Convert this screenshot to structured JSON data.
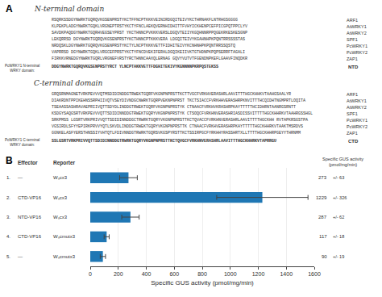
{
  "chart_data": {
    "type": "bar",
    "orientation": "horizontal",
    "panel_labels": [
      "A",
      "B"
    ],
    "alignment": [
      {
        "title": "N-terminal domain",
        "rows": [
          {
            "label": "ARF1",
            "seq": "RSQRKSSDGYNWRKTGQRQVKGSENPRSTYKCTFFNCPTKKKVEINIRDGQITEIVYKCTHRNAKFLNTRHGSGGGG"
          },
          {
            "label": "AtWRKY1",
            "seq": "KLPEKPLADGYNWRKTGQKLVRGNEPTRSTYKCTYFNCLAEKQVERNHIDHITTFVHYICKHENPCEFPICGPQTPPCLYV"
          },
          {
            "label": "AtWRKY2",
            "seq": "SAVDKPAQDGYNWRKTGQRHVEGSEYPRST YKCTHNNCPVKKKVERSLDGQVTEIIYKGQHNNRPPQGEKRKESKESGNP"
          },
          {
            "label": "SPF1",
            "seq": "LEKQRRSD DGYNWRKTGQRQVKGSENPRSTYKCTHNNCPTKKKVERA LDGQITEIVYKGAHNHPKPQNTRRSSSSTAS"
          },
          {
            "label": "PcWRKY1",
            "seq": "NRDQSKLDGYNWRKTGQRQVKGSENPRSTYKCTYLNCPTKKKVETTFIDHITEIVYKCNHNHPKPQNTRRSSQSTQ"
          },
          {
            "label": "PcWRKY2",
            "seq": "VAPRRSD DGYNWRKTGQKLVRGCEFPRSTYKCTYFNCDVEKIFERALDGQIKEIIVKTGTHDNPKPQPSERRFTAGALI"
          },
          {
            "label": "ZAP1",
            "seq": "FIRKKVRNEDGYNWRKTGQRLVRGNEFVRSTYRCTHNNCAAXQLERNAG GQVYVUTVTFGENDNPKEFLGAAVFINQDKR"
          }
        ],
        "domain_label": "PcWRKY1 N-terminal\nWRKY domain:",
        "domain_seq": "DDGYNWRKTGQRQVKGSENPRSTYRCT YLNCPTAKKVETTFDGHITEKIVYKGNNNNPKRPQSTEKSS",
        "domain_tag": "NTD"
      },
      {
        "title": "C-terminal domain",
        "rows": [
          {
            "label": "ARF1",
            "seq": "GRQSRNMAGNETVRKPEVVVQTMSDIDINDDGTRWEKTGQRFVKGNPNPRSTTKCTTVGCFVRKHVERASHRLAAVITTTHGCKHHKVTAAHGSAALYR"
          },
          {
            "label": "AtWRKY1",
            "seq": "DIAKRDNTPPIKEHNSSRPHIIVQTVSEYDIVNDGCNWRKTGQRPVEKNPNPRST TKCTSIACCFVRKHHVERASHRPKNVITTTHCQIDHTNGMPRTLOQITA"
          },
          {
            "label": "AtWRKY2",
            "seq": "TSEAASSASHRAVAEPRIIVQTTSDYDLINDDGTRWEKTGQRFVKGNPNPRSTYK CTNAACFVRKHVKRASHRPKAYTTTTTHCIDHRNTAANRGSRNTT"
          },
          {
            "label": "SPF1",
            "seq": "KSDGYSAQGSRTVRKPEVVVQTTSDIDINNDDGTRWEKTGQRYVKGNPNPRSTYK CTSOQCFVRKHNVERASHRIASDISSVITTTTHGCKHHRKVTAAHRGSSHGL"
          },
          {
            "label": "PcWRKY1",
            "seq": "SRKPMSS LGSRTVRKPRIVVQTTSDIDINNDDGCTRWRKTGQRYVKGNPNPRSTTKCTQVACCFVRKHNVERASHRLAAVITTTTHGCKHH RVTAPKRSGSTPA"
          },
          {
            "label": "PcWRKY2",
            "seq": "VGSIRDLSFYYEPIRKPRVVYQTLSKVDLINDDGTRWEKTGQRYVKGNPNPRSTTK CTNAACFVRKHVERASHRPKAYTTTTTHGCKHHRKVTAAKTMSRDVS"
          },
          {
            "label": "ZAP1",
            "seq": "GGNKELASFYERSTHNSSIYVHTQTLFDIVNNDGTRWRKTGQRSVKGSPYRSTTKCTSSIRPGCFYRKHHYRASSHRTXLLTTTTHGCKHHRPGEYYTHRNMM"
          }
        ],
        "domain_label": "PcWRKY1 C-terminal\nWRKY domain:",
        "domain_seq": "SSLGSRTVRKPRIVVQTTSDIDINNDDGTRWRKTGQRYVKGNPNPRSTTKCTQVGCFVRKHNVERASHRLAAVITTTHGCKHHRKVTAPRRGU",
        "domain_tag": "CTD"
      }
    ],
    "column_headers": [
      "Effector",
      "Reporter"
    ],
    "value_header": "Specific GUS activity\n(pmol/mg/min)",
    "categories": [
      "1.",
      "2.",
      "3.",
      "4.",
      "5."
    ],
    "effectors": [
      "—",
      "CTD-VP16",
      "NTD-VP16",
      "CTD-VP16",
      "—"
    ],
    "reporters": [
      "Wₛcx3",
      "Wₛcx3",
      "Wₛcx3",
      "Wₛcmutx3",
      "Wₛcmutx3"
    ],
    "values": [
      273,
      1229,
      287,
      117,
      90
    ],
    "errors": [
      63,
      326,
      62,
      18,
      19
    ],
    "error_labels": [
      "+/- 63",
      "+/- 326",
      "+/- 62",
      "+/- 18",
      "+/- 19"
    ],
    "data_labels": true,
    "xlabel": "Specific GUS activity (pmol/mg/min)",
    "xlim": [
      0,
      1600
    ],
    "xticks": [
      0,
      200,
      400,
      600,
      800,
      1000,
      1200,
      1400,
      1600
    ],
    "grid": true
  }
}
